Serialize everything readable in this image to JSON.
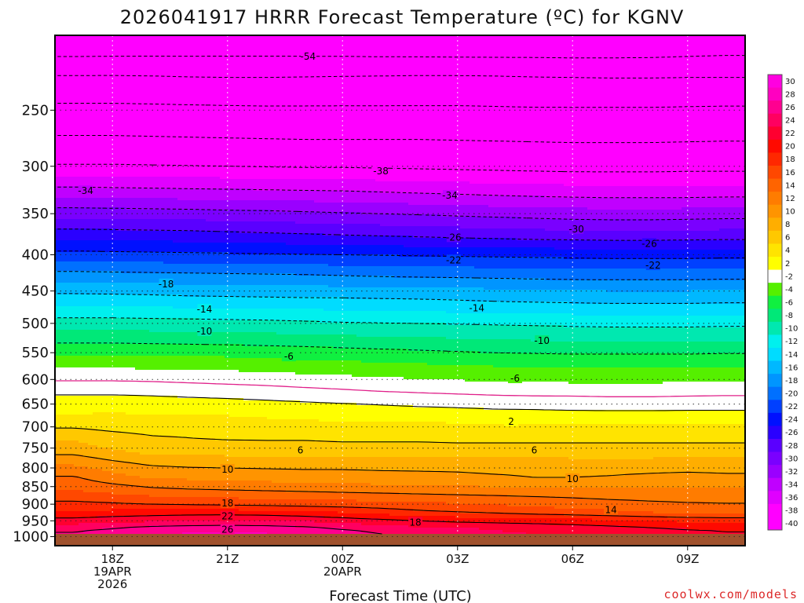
{
  "chart_data": {
    "type": "heatmap",
    "title": "2026041917 HRRR Forecast Temperature (ºC) for KGNV",
    "xlabel": "Forecast Time (UTC)",
    "ylabel": "",
    "credit": "coolwx.com/models",
    "x_range": [
      -0.5,
      17.5
    ],
    "x_ticks": [
      {
        "hour": 1,
        "lines": [
          "18Z",
          "19APR",
          "2026"
        ]
      },
      {
        "hour": 4,
        "lines": [
          "21Z"
        ]
      },
      {
        "hour": 7,
        "lines": [
          "00Z",
          "20APR"
        ]
      },
      {
        "hour": 10,
        "lines": [
          "03Z"
        ]
      },
      {
        "hour": 13,
        "lines": [
          "06Z"
        ]
      },
      {
        "hour": 16,
        "lines": [
          "09Z"
        ]
      }
    ],
    "y_axis": "pressure (hPa, log scale)",
    "y_range": [
      1030,
      196
    ],
    "y_ticks": [
      250,
      300,
      350,
      400,
      450,
      500,
      550,
      600,
      650,
      700,
      750,
      800,
      850,
      900,
      950,
      1000
    ],
    "color_levels": [
      -40,
      -38,
      -36,
      -34,
      -32,
      -30,
      -28,
      -26,
      -24,
      -22,
      -20,
      -18,
      -16,
      -14,
      -12,
      -10,
      -8,
      -6,
      -4,
      -2,
      2,
      4,
      6,
      8,
      10,
      12,
      14,
      16,
      18,
      20,
      22,
      24,
      26,
      28,
      30
    ],
    "colorbar_labels": [
      "30",
      "28",
      "26",
      "24",
      "22",
      "20",
      "18",
      "16",
      "14",
      "12",
      "10",
      "8",
      "6",
      "4",
      "2",
      "-2",
      "-4",
      "-6",
      "-8",
      "-10",
      "-12",
      "-14",
      "-16",
      "-18",
      "-20",
      "-22",
      "-24",
      "-26",
      "-28",
      "-30",
      "-32",
      "-34",
      "-36",
      "-38",
      "-40"
    ],
    "colors": {
      "-40": "#ff00ff",
      "-38": "#ff00ff",
      "-36": "#e000ff",
      "-34": "#c000ff",
      "-32": "#9a00ff",
      "-30": "#7a00ff",
      "-28": "#5a00ff",
      "-26": "#2a00ff",
      "-24": "#0010ff",
      "-22": "#0040ff",
      "-20": "#0070ff",
      "-18": "#0095ff",
      "-16": "#00b8ff",
      "-14": "#00dcff",
      "-12": "#00f0ee",
      "-10": "#00e8b0",
      "-8": "#00e878",
      "-6": "#10f040",
      "-4": "#55f000",
      "-2": "#ffffff",
      "2": "#ffff00",
      "4": "#ffe400",
      "6": "#ffc800",
      "8": "#ffae00",
      "10": "#ff9400",
      "12": "#ff7c00",
      "14": "#ff6400",
      "16": "#ff4800",
      "18": "#ff2800",
      "20": "#ff0a00",
      "22": "#ff0030",
      "24": "#ff0060",
      "26": "#ff0090",
      "28": "#ff00c0",
      "30": "#ff00e0"
    },
    "ground_color": "#a0522d",
    "zero_line_color": "#e0208a",
    "hours": [
      0,
      1,
      2,
      3,
      4,
      5,
      6,
      7,
      8,
      9,
      10,
      11,
      12,
      13,
      14,
      15,
      16,
      17
    ],
    "pressure_levels": [
      200,
      225,
      250,
      275,
      300,
      325,
      350,
      375,
      400,
      425,
      450,
      475,
      500,
      525,
      550,
      575,
      600,
      625,
      650,
      675,
      700,
      725,
      750,
      775,
      800,
      825,
      850,
      875,
      900,
      925,
      950,
      975,
      1000,
      1025
    ],
    "temperatures": [
      [
        -57.0,
        -56.9,
        -56.8,
        -56.7,
        -56.6,
        -56.6,
        -56.7,
        -56.8,
        -57.0,
        -57.1,
        -57.2,
        -57.2,
        -57.1,
        -57.2,
        -57.1,
        -57.0,
        -56.7,
        -56.4
      ],
      [
        -49.5,
        -49.5,
        -49.6,
        -49.8,
        -49.9,
        -49.9,
        -49.8,
        -49.7,
        -49.6,
        -49.5,
        -49.5,
        -49.6,
        -49.8,
        -49.9,
        -50.0,
        -50.0,
        -49.9,
        -49.9
      ],
      [
        -45.0,
        -45.0,
        -45.1,
        -45.2,
        -45.3,
        -45.4,
        -45.4,
        -45.4,
        -45.4,
        -45.4,
        -45.4,
        -45.5,
        -45.6,
        -45.6,
        -45.6,
        -45.6,
        -45.5,
        -45.4
      ],
      [
        -41.5,
        -41.5,
        -41.6,
        -41.7,
        -41.8,
        -41.9,
        -42.0,
        -42.0,
        -42.0,
        -42.0,
        -42.1,
        -42.2,
        -42.3,
        -42.4,
        -42.4,
        -42.4,
        -42.3,
        -42.2
      ],
      [
        -37.7,
        -37.7,
        -37.8,
        -37.9,
        -38.0,
        -38.1,
        -38.2,
        -38.2,
        -38.3,
        -38.4,
        -38.5,
        -38.6,
        -38.7,
        -38.8,
        -38.8,
        -38.8,
        -38.7,
        -38.7
      ],
      [
        -33.3,
        -33.4,
        -33.5,
        -33.6,
        -33.7,
        -33.8,
        -33.9,
        -34.0,
        -34.2,
        -34.4,
        -34.6,
        -34.8,
        -35.0,
        -35.1,
        -35.2,
        -35.2,
        -35.2,
        -35.1
      ],
      [
        -28.8,
        -28.9,
        -29.0,
        -29.1,
        -29.3,
        -29.4,
        -29.6,
        -29.8,
        -30.0,
        -30.2,
        -30.4,
        -30.6,
        -30.8,
        -31.0,
        -31.1,
        -31.1,
        -31.0,
        -30.9
      ],
      [
        -24.9,
        -25.0,
        -25.1,
        -25.2,
        -25.4,
        -25.6,
        -25.8,
        -26.0,
        -26.2,
        -26.4,
        -26.6,
        -26.8,
        -27.0,
        -27.1,
        -27.2,
        -27.2,
        -27.1,
        -27.0
      ],
      [
        -21.3,
        -21.4,
        -21.5,
        -21.6,
        -21.7,
        -21.8,
        -21.9,
        -22.0,
        -22.1,
        -22.2,
        -22.3,
        -22.4,
        -22.5,
        -22.6,
        -22.7,
        -22.7,
        -22.7,
        -22.6
      ],
      [
        -17.6,
        -17.7,
        -17.8,
        -17.9,
        -18.0,
        -18.1,
        -18.2,
        -18.4,
        -18.6,
        -18.7,
        -18.8,
        -18.9,
        -19.0,
        -19.1,
        -19.1,
        -19.1,
        -19.1,
        -19.0
      ],
      [
        -14.4,
        -14.5,
        -14.6,
        -14.8,
        -14.9,
        -15.0,
        -15.1,
        -15.1,
        -15.2,
        -15.3,
        -15.4,
        -15.6,
        -15.8,
        -15.9,
        -16.0,
        -16.0,
        -16.0,
        -15.9
      ],
      [
        -11.8,
        -11.8,
        -11.9,
        -12.0,
        -12.1,
        -12.2,
        -12.3,
        -12.4,
        -12.5,
        -12.6,
        -12.8,
        -13.0,
        -13.1,
        -13.2,
        -13.3,
        -13.3,
        -13.3,
        -13.2
      ],
      [
        -9.0,
        -9.0,
        -9.1,
        -9.2,
        -9.3,
        -9.4,
        -9.6,
        -9.8,
        -9.9,
        -10.0,
        -10.1,
        -10.2,
        -10.3,
        -10.4,
        -10.5,
        -10.5,
        -10.5,
        -10.4
      ],
      [
        -6.8,
        -6.8,
        -6.9,
        -7.0,
        -7.1,
        -7.2,
        -7.3,
        -7.5,
        -7.7,
        -7.8,
        -8.0,
        -8.2,
        -8.3,
        -8.4,
        -8.4,
        -8.4,
        -8.4,
        -8.3
      ],
      [
        -4.3,
        -4.3,
        -4.4,
        -4.5,
        -4.6,
        -4.8,
        -5.0,
        -5.2,
        -5.4,
        -5.6,
        -5.8,
        -6.0,
        -6.1,
        -6.2,
        -6.2,
        -6.2,
        -6.2,
        -6.1
      ],
      [
        -2.3,
        -2.3,
        -2.4,
        -2.5,
        -2.6,
        -2.8,
        -3.0,
        -3.2,
        -3.4,
        -3.6,
        -3.8,
        -4.0,
        -4.1,
        -4.2,
        -4.2,
        -4.2,
        -4.2,
        -4.1
      ],
      [
        -0.2,
        -0.2,
        -0.3,
        -0.5,
        -0.7,
        -0.9,
        -1.2,
        -1.4,
        -1.7,
        -1.9,
        -2.1,
        -2.3,
        -2.4,
        -2.5,
        -2.5,
        -2.5,
        -2.4,
        -2.3
      ],
      [
        1.7,
        1.7,
        1.6,
        1.4,
        1.2,
        1.0,
        0.7,
        0.4,
        0.1,
        -0.1,
        -0.3,
        -0.5,
        -0.6,
        -0.6,
        -0.7,
        -0.7,
        -0.6,
        -0.5
      ],
      [
        3.0,
        3.0,
        2.9,
        2.8,
        2.7,
        2.5,
        2.3,
        2.1,
        1.9,
        1.7,
        1.6,
        1.4,
        1.3,
        1.2,
        1.1,
        1.1,
        1.2,
        1.2
      ],
      [
        4.2,
        4.3,
        4.2,
        4.1,
        4.0,
        3.8,
        3.6,
        3.4,
        3.2,
        3.1,
        2.9,
        2.8,
        2.8,
        2.7,
        2.7,
        2.7,
        2.7,
        2.7
      ],
      [
        5.8,
        5.4,
        5.2,
        5.0,
        4.9,
        4.8,
        4.7,
        4.6,
        4.6,
        4.6,
        4.6,
        4.6,
        4.6,
        4.6,
        4.6,
        4.6,
        4.6,
        4.6
      ],
      [
        7.6,
        6.8,
        6.2,
        6.0,
        5.9,
        5.9,
        5.9,
        5.8,
        5.8,
        5.8,
        5.8,
        5.8,
        5.8,
        5.8,
        5.8,
        5.8,
        5.8,
        5.8
      ],
      [
        8.9,
        7.8,
        6.6,
        6.4,
        6.4,
        6.3,
        6.3,
        6.3,
        6.3,
        6.3,
        6.2,
        6.2,
        6.2,
        6.2,
        6.2,
        6.2,
        6.2,
        6.2
      ],
      [
        10.6,
        9.6,
        8.8,
        8.6,
        8.5,
        8.4,
        8.4,
        8.3,
        8.3,
        8.2,
        8.2,
        8.1,
        8.1,
        8.0,
        8.0,
        8.0,
        8.1,
        8.1
      ],
      [
        12.6,
        11.3,
        10.4,
        10.1,
        10.0,
        9.9,
        9.8,
        9.8,
        9.7,
        9.7,
        9.7,
        9.6,
        9.6,
        9.6,
        9.6,
        9.6,
        9.6,
        9.6
      ],
      [
        14.2,
        12.7,
        11.8,
        11.6,
        11.4,
        11.2,
        11.1,
        11.0,
        10.8,
        10.6,
        10.4,
        10.2,
        10.0,
        10.0,
        10.1,
        10.3,
        10.5,
        10.3
      ],
      [
        15.4,
        14.6,
        13.8,
        13.4,
        13.2,
        13.0,
        12.8,
        12.6,
        12.4,
        12.2,
        12.1,
        12.0,
        11.9,
        11.8,
        11.8,
        11.8,
        11.8,
        11.8
      ],
      [
        16.9,
        16.4,
        15.9,
        15.6,
        15.4,
        15.2,
        15.0,
        14.8,
        14.6,
        14.4,
        14.2,
        14.0,
        13.8,
        13.6,
        13.4,
        13.3,
        13.2,
        13.2
      ],
      [
        18.6,
        18.3,
        18.0,
        17.8,
        17.6,
        17.4,
        17.2,
        17.0,
        16.8,
        16.5,
        16.2,
        15.9,
        15.5,
        15.1,
        14.7,
        14.4,
        14.2,
        14.1
      ],
      [
        20.5,
        20.8,
        21.0,
        21.2,
        21.2,
        21.0,
        20.6,
        20.0,
        19.3,
        18.6,
        18.1,
        17.7,
        17.3,
        16.9,
        16.5,
        16.1,
        15.8,
        15.7
      ],
      [
        22.8,
        23.3,
        23.7,
        24.0,
        24.2,
        24.1,
        23.8,
        23.2,
        22.6,
        22.0,
        21.6,
        21.4,
        21.2,
        20.9,
        20.5,
        20.0,
        19.6,
        19.4
      ],
      [
        25.5,
        26.2,
        27.0,
        27.3,
        27.4,
        27.2,
        26.8,
        26.0,
        25.3,
        24.7,
        24.2,
        23.8,
        23.5,
        23.2,
        22.8,
        22.4,
        22.0,
        21.8
      ],
      [
        26.6,
        27.4,
        28.2,
        28.6,
        28.8,
        28.6,
        28.0,
        27.2,
        26.4,
        25.7,
        25.1,
        24.6,
        24.2,
        23.9,
        23.5,
        23.0,
        22.6,
        22.3
      ],
      [
        27.5,
        28.3,
        29.1,
        29.6,
        29.8,
        29.6,
        29.0,
        28.1,
        27.2,
        26.4,
        25.8,
        25.3,
        24.8,
        24.4,
        24.0,
        23.5,
        23.0,
        22.7
      ]
    ],
    "isotherms": {
      "dashed": [
        -54,
        -50,
        -46,
        -42,
        -38,
        -34,
        -30,
        -26,
        -22,
        -18,
        -14,
        -10,
        -6
      ],
      "solid": [
        2,
        6,
        10,
        14,
        18,
        22,
        26
      ],
      "zero": [
        0
      ]
    },
    "contour_labels": [
      {
        "value": "-54",
        "hour": 6.1,
        "p": 210
      },
      {
        "value": "-38",
        "hour": 8.0,
        "p": 305
      },
      {
        "value": "-34",
        "hour": 0.3,
        "p": 325
      },
      {
        "value": "-34",
        "hour": 9.8,
        "p": 330
      },
      {
        "value": "-30",
        "hour": 13.1,
        "p": 368
      },
      {
        "value": "-26",
        "hour": 9.9,
        "p": 378
      },
      {
        "value": "-26",
        "hour": 15.0,
        "p": 386
      },
      {
        "value": "-22",
        "hour": 9.9,
        "p": 407
      },
      {
        "value": "-22",
        "hour": 15.1,
        "p": 414
      },
      {
        "value": "-18",
        "hour": 2.4,
        "p": 440
      },
      {
        "value": "-14",
        "hour": 3.4,
        "p": 478
      },
      {
        "value": "-14",
        "hour": 10.5,
        "p": 476
      },
      {
        "value": "-10",
        "hour": 3.4,
        "p": 513
      },
      {
        "value": "-10",
        "hour": 12.2,
        "p": 529
      },
      {
        "value": "-6",
        "hour": 5.6,
        "p": 557
      },
      {
        "value": "-6",
        "hour": 11.5,
        "p": 598
      },
      {
        "value": "2",
        "hour": 11.4,
        "p": 688
      },
      {
        "value": "6",
        "hour": 5.9,
        "p": 755
      },
      {
        "value": "6",
        "hour": 12.0,
        "p": 755
      },
      {
        "value": "10",
        "hour": 4.0,
        "p": 804
      },
      {
        "value": "10",
        "hour": 13.0,
        "p": 829
      },
      {
        "value": "14",
        "hour": 14.0,
        "p": 917
      },
      {
        "value": "18",
        "hour": 4.0,
        "p": 897
      },
      {
        "value": "18",
        "hour": 8.9,
        "p": 955
      },
      {
        "value": "22",
        "hour": 4.0,
        "p": 936
      },
      {
        "value": "26",
        "hour": 4.0,
        "p": 978
      }
    ],
    "legend_position": "right"
  }
}
